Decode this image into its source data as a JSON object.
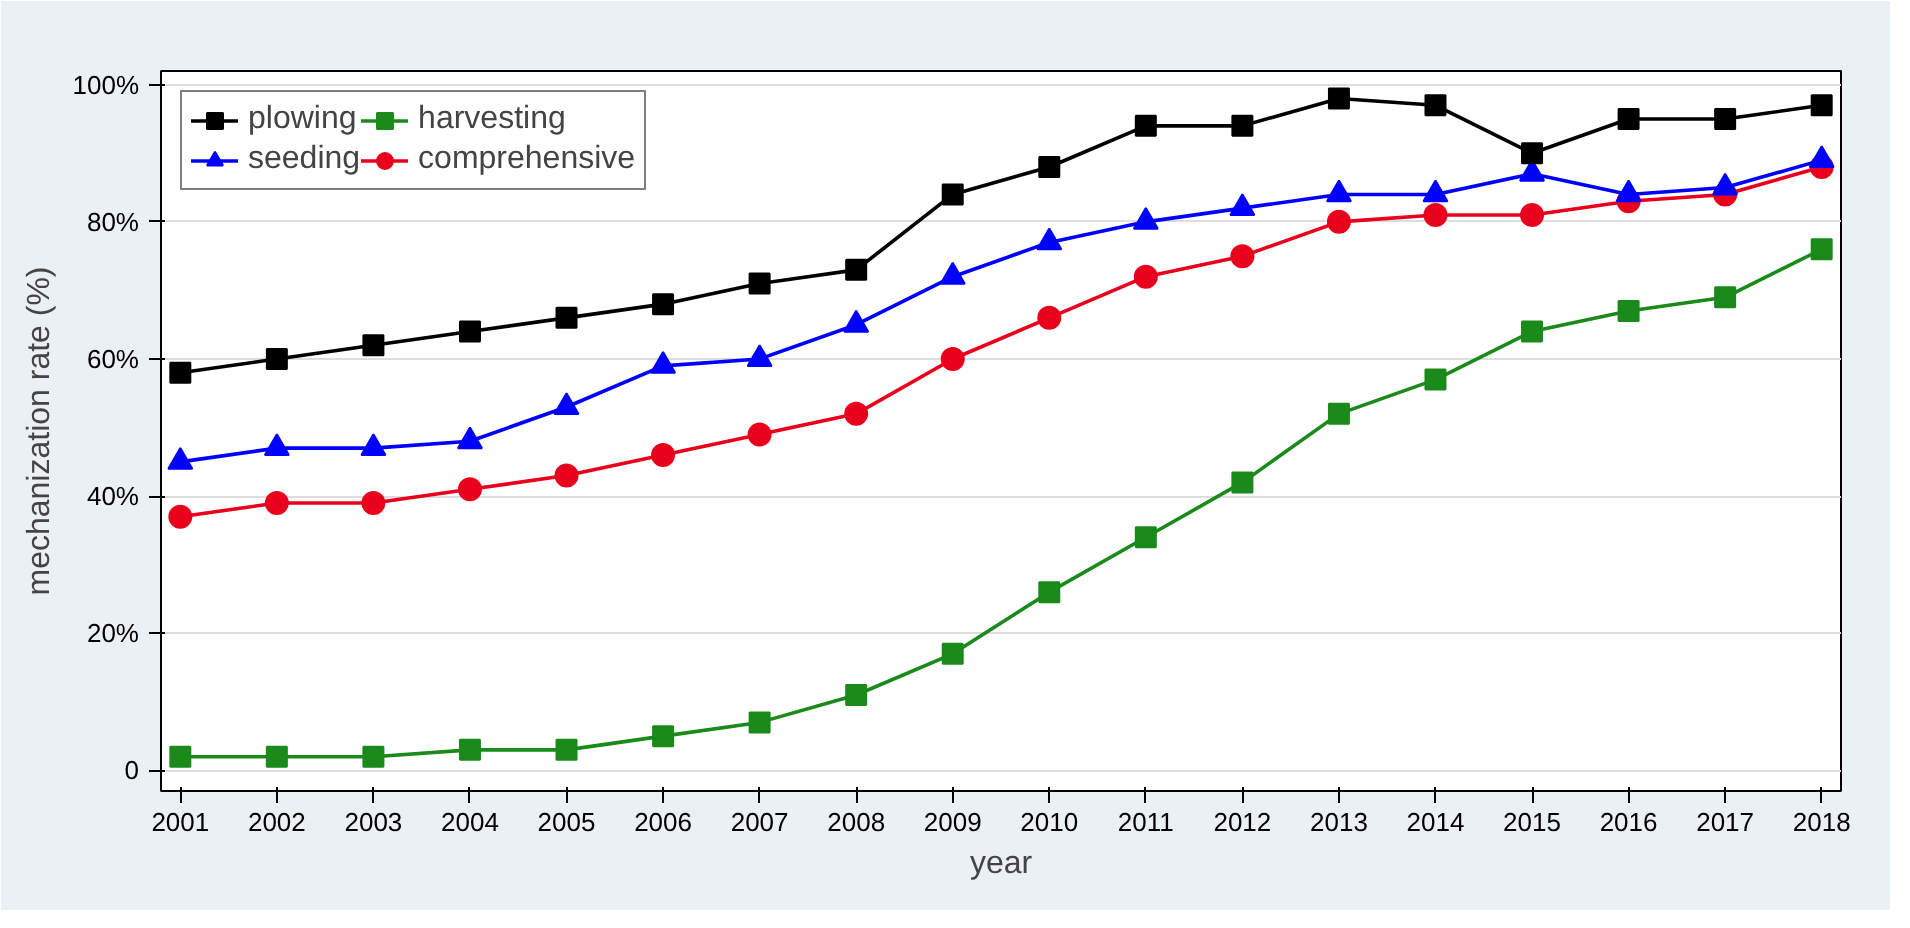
{
  "chart_data": {
    "type": "line",
    "xlabel": "year",
    "ylabel": "mechanization rate (%)",
    "x": [
      2001,
      2002,
      2003,
      2004,
      2005,
      2006,
      2007,
      2008,
      2009,
      2010,
      2011,
      2012,
      2013,
      2014,
      2015,
      2016,
      2017,
      2018
    ],
    "xlim": [
      2000.8,
      2018.2
    ],
    "xticks": [
      2001,
      2002,
      2003,
      2004,
      2005,
      2006,
      2007,
      2008,
      2009,
      2010,
      2011,
      2012,
      2013,
      2014,
      2015,
      2016,
      2017,
      2018
    ],
    "ylim": [
      -3,
      102
    ],
    "yticks": [
      {
        "value": 0,
        "label": "0"
      },
      {
        "value": 20,
        "label": "20%"
      },
      {
        "value": 40,
        "label": "40%"
      },
      {
        "value": 60,
        "label": "60%"
      },
      {
        "value": 80,
        "label": "80%"
      },
      {
        "value": 100,
        "label": "100%"
      }
    ],
    "grid": "y",
    "legend": "top left",
    "line_style": "solid",
    "series": [
      {
        "name": "plowing",
        "color": "#000000",
        "marker": "square",
        "values": [
          58,
          60,
          62,
          64,
          66,
          68,
          71,
          73,
          84,
          88,
          94,
          94,
          98,
          97,
          90,
          95,
          95,
          97
        ]
      },
      {
        "name": "seeding",
        "color": "#0000ff",
        "marker": "triangle",
        "values": [
          45,
          47,
          47,
          48,
          53,
          59,
          60,
          65,
          72,
          77,
          80,
          82,
          84,
          84,
          87,
          84,
          85,
          89
        ]
      },
      {
        "name": "harvesting",
        "color": "#1a8a1a",
        "marker": "square",
        "values": [
          2,
          2,
          2,
          3,
          3,
          5,
          7,
          11,
          17,
          26,
          34,
          42,
          52,
          57,
          64,
          67,
          69,
          76
        ]
      },
      {
        "name": "comprehensive",
        "color": "#e8001c",
        "marker": "circle",
        "values": [
          37,
          39,
          39,
          41,
          43,
          46,
          49,
          52,
          60,
          66,
          72,
          75,
          80,
          81,
          81,
          83,
          84,
          88
        ]
      }
    ]
  }
}
